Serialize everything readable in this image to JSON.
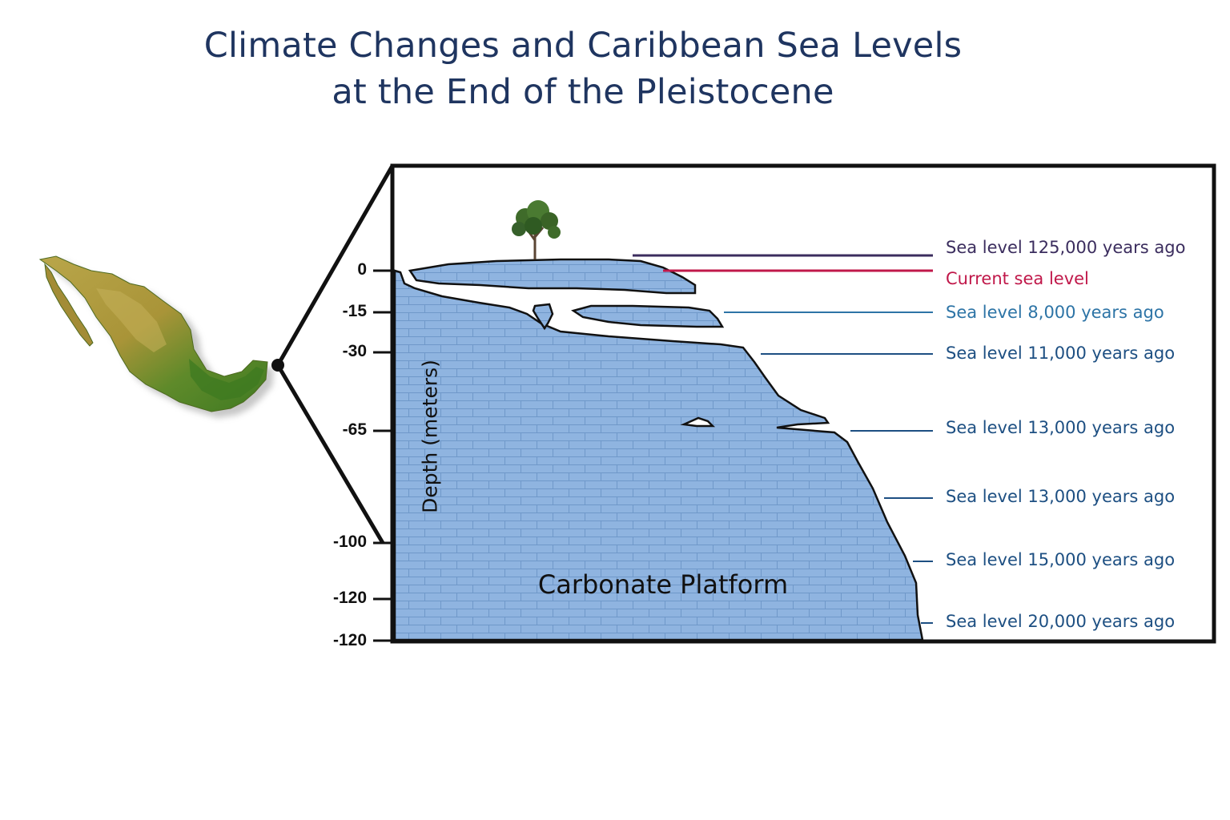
{
  "title": {
    "line1": "Climate Changes and Caribbean Sea Levels",
    "line2": "at the End of the Pleistocene"
  },
  "axis": {
    "title": "Depth (meters)",
    "ticks": [
      "0",
      "-15",
      "-30",
      "-65",
      "-100",
      "-120",
      "-120"
    ]
  },
  "platform_label": "Carbonate Platform",
  "sea_levels": [
    {
      "label": "Sea level 125,000 years ago",
      "color": "#3b2d5e"
    },
    {
      "label": "Current sea level",
      "color": "#c0184a"
    },
    {
      "label": "Sea level 8,000 years ago",
      "color": "#2d74a6"
    },
    {
      "label": "Sea level 11,000 years ago",
      "color": "#1d4f82"
    },
    {
      "label": "Sea level 13,000 years ago",
      "color": "#1d4f82"
    },
    {
      "label": "Sea level 13,000 years ago",
      "color": "#1d4f82"
    },
    {
      "label": "Sea level 15,000 years ago",
      "color": "#1d4f82"
    },
    {
      "label": "Sea level 20,000 years ago",
      "color": "#1d4f82"
    }
  ],
  "colors": {
    "platform_fill": "#8fb4e0",
    "brick_line": "#6f98c9",
    "outline": "#111111",
    "title": "#1f3560"
  },
  "icons": [
    "mexico-map-icon",
    "tree-icon"
  ]
}
